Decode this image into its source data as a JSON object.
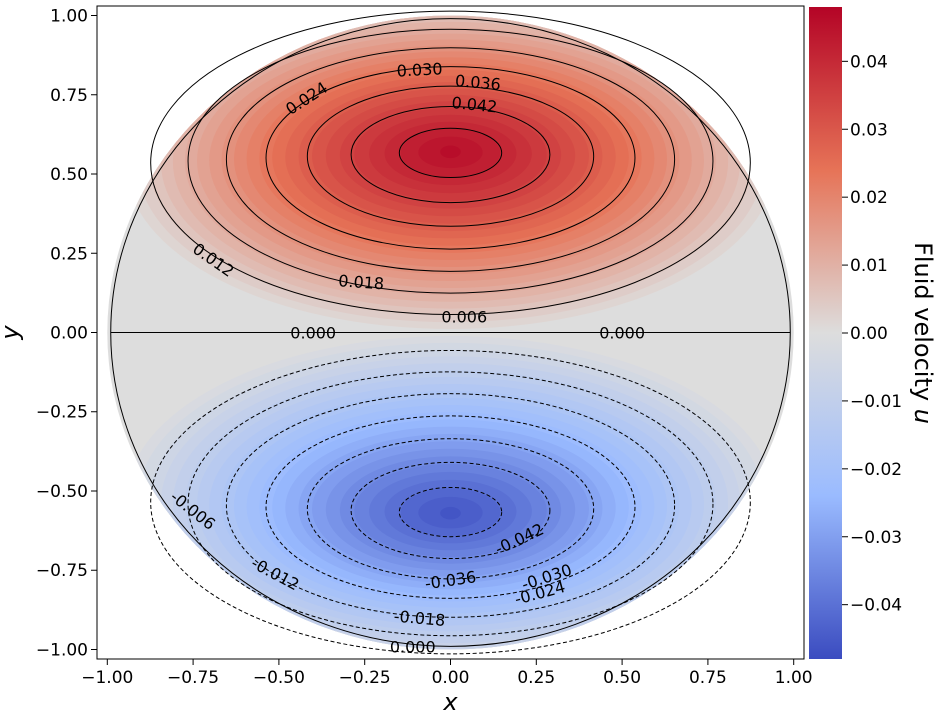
{
  "chart_data": {
    "type": "contour",
    "title": "",
    "xlabel": "x",
    "ylabel": "y",
    "colorbar_label": "Fluid velocity",
    "colorbar_label_var": "u",
    "xlim": [
      -1.03,
      1.03
    ],
    "ylim": [
      -1.03,
      1.03
    ],
    "x_ticks": [
      -1.0,
      -0.75,
      -0.5,
      -0.25,
      0.0,
      0.25,
      0.5,
      0.75,
      1.0
    ],
    "x_tick_labels": [
      "−1.00",
      "−0.75",
      "−0.50",
      "−0.25",
      "0.00",
      "0.25",
      "0.50",
      "0.75",
      "1.00"
    ],
    "y_ticks": [
      1.0,
      0.75,
      0.5,
      0.25,
      0.0,
      -0.25,
      -0.5,
      -0.75,
      -1.0
    ],
    "y_tick_labels": [
      "1.00",
      "0.75",
      "0.50",
      "0.25",
      "0.00",
      "−0.25",
      "−0.50",
      "−0.75",
      "−1.00"
    ],
    "colorbar_range": [
      -0.048,
      0.048
    ],
    "colorbar_ticks": [
      0.04,
      0.03,
      0.02,
      0.01,
      0.0,
      -0.01,
      -0.02,
      -0.03,
      -0.04
    ],
    "colorbar_tick_labels": [
      "0.04",
      "0.03",
      "0.02",
      "0.01",
      "0.00",
      "−0.01",
      "−0.02",
      "−0.03",
      "−0.04"
    ],
    "colormap": "coolwarm",
    "colors": {
      "max": "#b40426",
      "mid": "#dddddd",
      "min": "#3b4cc0"
    },
    "field": {
      "domain": "unit disk",
      "upper_peak": {
        "x": 0.0,
        "y": 0.57,
        "value": 0.046
      },
      "lower_peak": {
        "x": 0.0,
        "y": -0.57,
        "value": -0.046
      }
    },
    "contour_levels": [
      -0.042,
      -0.036,
      -0.03,
      -0.024,
      -0.018,
      -0.012,
      -0.006,
      0.0,
      0.006,
      0.012,
      0.018,
      0.024,
      0.03,
      0.036,
      0.042
    ],
    "contour_labels": [
      {
        "text": "0.030",
        "x": -0.09,
        "y": 0.83,
        "rot": -3
      },
      {
        "text": "0.036",
        "x": 0.08,
        "y": 0.79,
        "rot": 5
      },
      {
        "text": "0.024",
        "x": -0.42,
        "y": 0.74,
        "rot": -33
      },
      {
        "text": "0.042",
        "x": 0.07,
        "y": 0.72,
        "rot": 6
      },
      {
        "text": "0.012",
        "x": -0.69,
        "y": 0.23,
        "rot": 35
      },
      {
        "text": "0.018",
        "x": -0.26,
        "y": 0.16,
        "rot": 4
      },
      {
        "text": "0.006",
        "x": 0.04,
        "y": 0.05,
        "rot": 0
      },
      {
        "text": "0.000",
        "x": -0.4,
        "y": 0.0,
        "rot": 0
      },
      {
        "text": "0.000",
        "x": 0.5,
        "y": 0.0,
        "rot": 0
      },
      {
        "text": "-0.006",
        "x": -0.75,
        "y": -0.56,
        "rot": 38
      },
      {
        "text": "-0.042",
        "x": 0.2,
        "y": -0.65,
        "rot": -25
      },
      {
        "text": "-0.012",
        "x": -0.51,
        "y": -0.76,
        "rot": 28
      },
      {
        "text": "-0.036",
        "x": 0.0,
        "y": -0.78,
        "rot": -8
      },
      {
        "text": "-0.030",
        "x": 0.28,
        "y": -0.77,
        "rot": -18
      },
      {
        "text": "-0.024",
        "x": 0.26,
        "y": -0.82,
        "rot": -15
      },
      {
        "text": "-0.018",
        "x": -0.09,
        "y": -0.9,
        "rot": 5
      },
      {
        "text": "0.000",
        "x": -0.11,
        "y": -0.99,
        "rot": 0
      }
    ]
  }
}
